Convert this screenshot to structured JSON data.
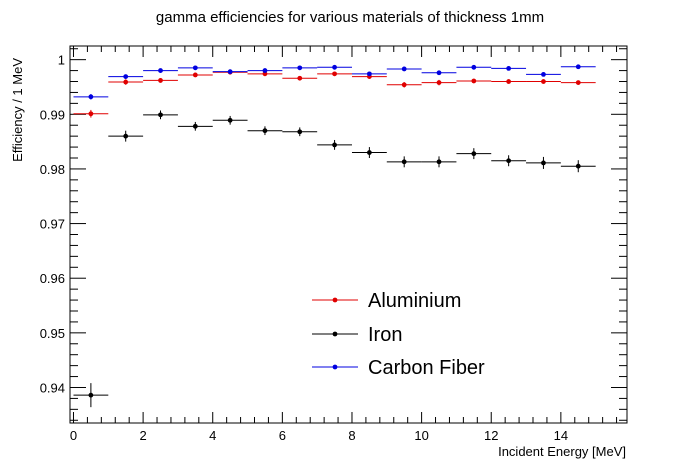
{
  "chart_data": {
    "type": "scatter",
    "title": "gamma efficiencies for various materials of thickness 1mm",
    "xlabel": "Incident Energy [MeV]",
    "ylabel": "Efficiency / 1 MeV",
    "xlim": [
      -0.1,
      15.9
    ],
    "ylim": [
      0.9335,
      1.0025
    ],
    "xticks": [
      0,
      2,
      4,
      6,
      8,
      10,
      12,
      14
    ],
    "xtick_labels": [
      "0",
      "2",
      "4",
      "6",
      "8",
      "10",
      "12",
      "14"
    ],
    "yticks": [
      0.94,
      0.95,
      0.96,
      0.97,
      0.98,
      0.99,
      1.0
    ],
    "ytick_labels": [
      "0.94",
      "0.95",
      "0.96",
      "0.97",
      "0.98",
      "0.99",
      "1"
    ],
    "x_error": 0.5,
    "grid": false,
    "legend_position": "bottom-center",
    "series": [
      {
        "name": "Aluminium",
        "color": "#e00000",
        "x": [
          0.5,
          1.5,
          2.5,
          3.5,
          4.5,
          5.5,
          6.5,
          7.5,
          8.5,
          9.5,
          10.5,
          11.5,
          12.5,
          13.5,
          14.5
        ],
        "y": [
          0.9901,
          0.9959,
          0.9962,
          0.9972,
          0.9977,
          0.9974,
          0.9966,
          0.9974,
          0.9969,
          0.9954,
          0.9958,
          0.9961,
          0.996,
          0.996,
          0.9958
        ],
        "yerr": [
          0.0007,
          0.0005,
          0.0004,
          0.0003,
          0.0003,
          0.0003,
          0.0004,
          0.0003,
          0.0004,
          0.0005,
          0.0005,
          0.0004,
          0.0004,
          0.0004,
          0.0004
        ]
      },
      {
        "name": "Iron",
        "color": "#000000",
        "x": [
          0.5,
          1.5,
          2.5,
          3.5,
          4.5,
          5.5,
          6.5,
          7.5,
          8.5,
          9.5,
          10.5,
          11.5,
          12.5,
          13.5,
          14.5
        ],
        "y": [
          0.9386,
          0.986,
          0.9899,
          0.9878,
          0.9889,
          0.987,
          0.9868,
          0.9844,
          0.983,
          0.9813,
          0.9813,
          0.9828,
          0.9815,
          0.9811,
          0.9805
        ],
        "yerr": [
          0.0022,
          0.001,
          0.0008,
          0.0008,
          0.0008,
          0.0008,
          0.0008,
          0.0009,
          0.001,
          0.001,
          0.001,
          0.001,
          0.001,
          0.0011,
          0.0011
        ]
      },
      {
        "name": "Carbon Fiber",
        "color": "#0000e0",
        "x": [
          0.5,
          1.5,
          2.5,
          3.5,
          4.5,
          5.5,
          6.5,
          7.5,
          8.5,
          9.5,
          10.5,
          11.5,
          12.5,
          13.5,
          14.5
        ],
        "y": [
          0.9932,
          0.9969,
          0.998,
          0.9985,
          0.9978,
          0.998,
          0.9985,
          0.9986,
          0.9974,
          0.9983,
          0.9976,
          0.9986,
          0.9984,
          0.9973,
          0.9987
        ],
        "yerr": [
          0.0005,
          0.0004,
          0.0003,
          0.0002,
          0.0002,
          0.0002,
          0.0002,
          0.0002,
          0.0003,
          0.0002,
          0.0003,
          0.0002,
          0.0002,
          0.0003,
          0.0002
        ]
      }
    ]
  }
}
